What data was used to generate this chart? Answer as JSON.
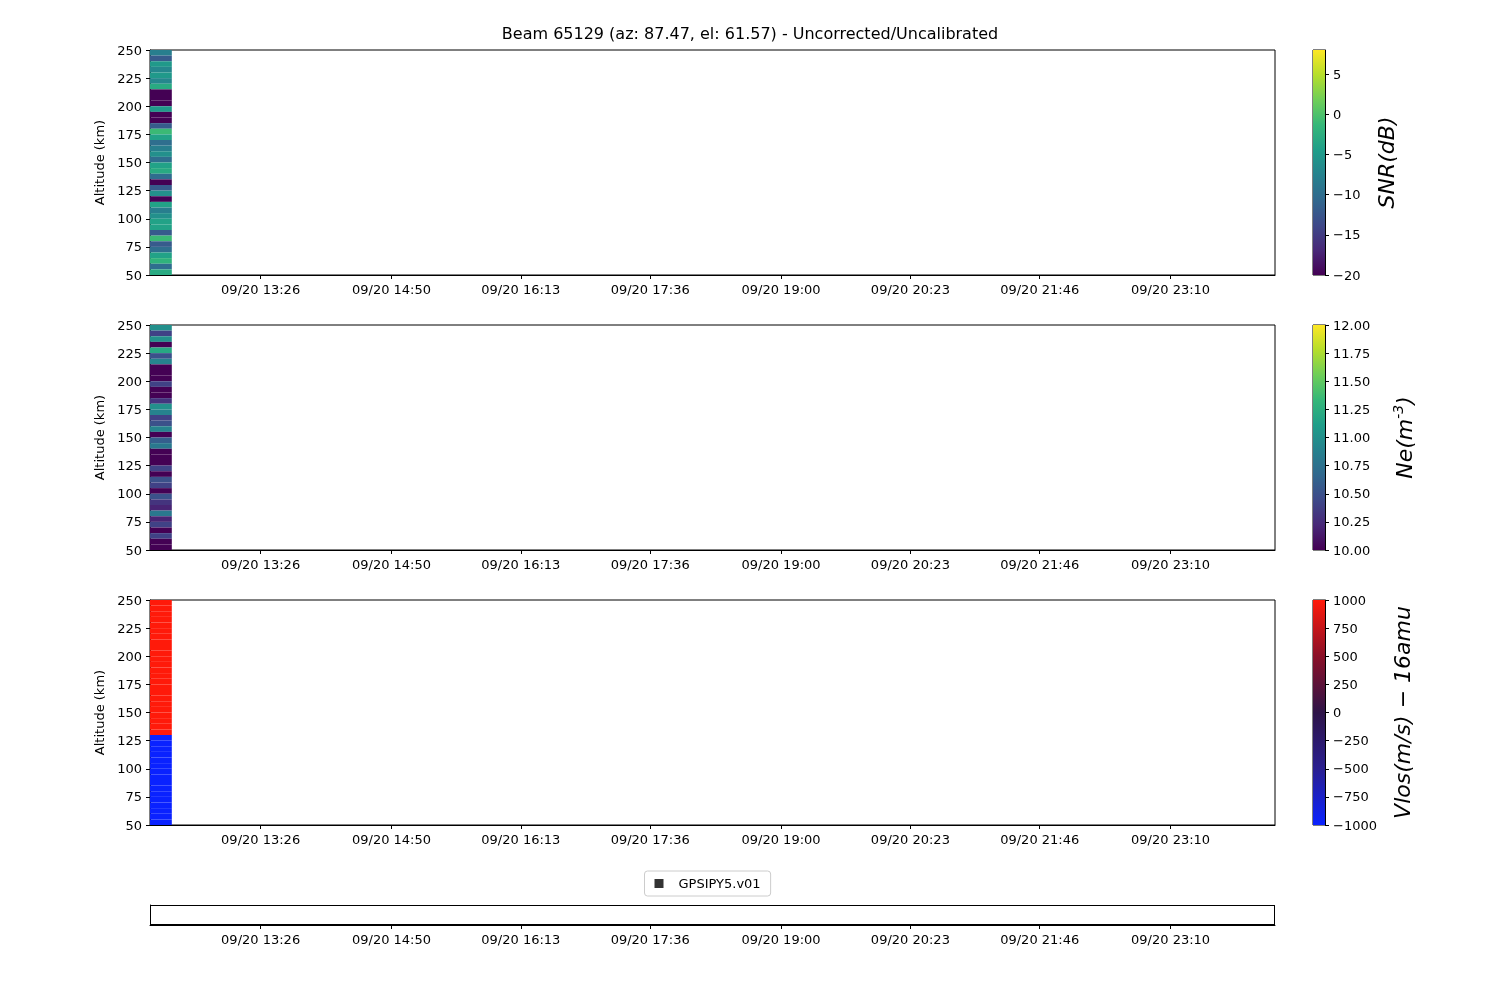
{
  "chart_data": [
    {
      "type": "heatmap",
      "title": "Beam 65129 (az: 87.47, el: 61.57) - Uncorrected/Uncalibrated",
      "ylabel": "Altitude (km)",
      "clabel": "SNR(dB)",
      "x": [
        "--09-20T12:22",
        "--09-20T12:36"
      ],
      "xlim": [
        "--09-20T12:15",
        "--09-21T00:17"
      ],
      "xticks": [
        {
          "value": "--09-20T13:26",
          "label": "09/20 13:26"
        },
        {
          "value": "--09-20T14:50",
          "label": "09/20 14:50"
        },
        {
          "value": "--09-20T16:13",
          "label": "09/20 16:13"
        },
        {
          "value": "--09-20T17:36",
          "label": "09/20 17:36"
        },
        {
          "value": "--09-20T19:00",
          "label": "09/20 19:00"
        },
        {
          "value": "--09-20T20:23",
          "label": "09/20 20:23"
        },
        {
          "value": "--09-20T21:46",
          "label": "09/20 21:46"
        },
        {
          "value": "--09-20T23:10",
          "label": "09/20 23:10"
        }
      ],
      "ylim": [
        50,
        250
      ],
      "yticks": [
        50,
        75,
        100,
        125,
        150,
        175,
        200,
        225,
        250
      ],
      "clim": [
        -20,
        8
      ],
      "cticks": [
        {
          "value": -20,
          "label": "−20"
        },
        {
          "value": -15,
          "label": "−15"
        },
        {
          "value": -10,
          "label": "−10"
        },
        {
          "value": -5,
          "label": "−5"
        },
        0,
        5
      ],
      "cells": [
        [
          -8,
          null
        ],
        [
          -12,
          null
        ],
        [
          -5,
          null
        ],
        [
          -7,
          null
        ],
        [
          -5,
          null
        ],
        [
          -7,
          null
        ],
        [
          -3,
          null
        ],
        [
          -20,
          null
        ],
        [
          -20,
          null
        ],
        [
          -20,
          null
        ],
        [
          -5,
          null
        ],
        [
          -20,
          null
        ],
        [
          -20,
          null
        ],
        [
          -12,
          null
        ],
        [
          -1,
          null
        ],
        [
          -4,
          null
        ],
        [
          -10,
          null
        ],
        [
          -8,
          null
        ],
        [
          -6,
          null
        ],
        [
          -10,
          null
        ],
        [
          -4,
          null
        ],
        [
          -3,
          null
        ],
        [
          -10,
          null
        ],
        [
          -20,
          null
        ],
        [
          -12,
          null
        ],
        [
          -6,
          null
        ],
        [
          -20,
          null
        ],
        [
          -4,
          null
        ],
        [
          -8,
          null
        ],
        [
          -6,
          null
        ],
        [
          -4,
          null
        ],
        [
          -4,
          null
        ],
        [
          -12,
          null
        ],
        [
          -1,
          null
        ],
        [
          -12,
          null
        ],
        [
          -10,
          null
        ],
        [
          -4,
          null
        ],
        [
          -2,
          null
        ],
        [
          -10,
          null
        ],
        [
          -3,
          null
        ]
      ]
    },
    {
      "type": "heatmap",
      "ylabel": "Altitude (km)",
      "clabel": "Ne(m$^{-3}$)",
      "x": [
        "--09-20T12:22",
        "--09-20T12:36"
      ],
      "xlim": [
        "--09-20T12:15",
        "--09-21T00:17"
      ],
      "xticks": [
        {
          "value": "--09-20T13:26",
          "label": "09/20 13:26"
        },
        {
          "value": "--09-20T14:50",
          "label": "09/20 14:50"
        },
        {
          "value": "--09-20T16:13",
          "label": "09/20 16:13"
        },
        {
          "value": "--09-20T17:36",
          "label": "09/20 17:36"
        },
        {
          "value": "--09-20T19:00",
          "label": "09/20 19:00"
        },
        {
          "value": "--09-20T20:23",
          "label": "09/20 20:23"
        },
        {
          "value": "--09-20T21:46",
          "label": "09/20 21:46"
        },
        {
          "value": "--09-20T23:10",
          "label": "09/20 23:10"
        }
      ],
      "ylim": [
        50,
        250
      ],
      "yticks": [
        50,
        75,
        100,
        125,
        150,
        175,
        200,
        225,
        250
      ],
      "clim": [
        10,
        12
      ],
      "cticks": [
        {
          "value": 10,
          "label": "10.00"
        },
        {
          "value": 10.25,
          "label": "10.25"
        },
        {
          "value": 10.5,
          "label": "10.50"
        },
        {
          "value": 10.75,
          "label": "10.75"
        },
        {
          "value": 11,
          "label": "11.00"
        },
        {
          "value": 11.25,
          "label": "11.25"
        },
        {
          "value": 11.5,
          "label": "11.50"
        },
        {
          "value": 11.75,
          "label": "11.75"
        },
        {
          "value": 12,
          "label": "12.00"
        }
      ],
      "cells": [
        [
          11.0,
          null
        ],
        [
          10.4,
          null
        ],
        [
          11.0,
          null
        ],
        [
          10.0,
          null
        ],
        [
          11.2,
          null
        ],
        [
          10.5,
          null
        ],
        [
          10.9,
          null
        ],
        [
          10.0,
          null
        ],
        [
          10.0,
          null
        ],
        [
          10.0,
          null
        ],
        [
          10.4,
          null
        ],
        [
          10.0,
          null
        ],
        [
          10.0,
          null
        ],
        [
          10.3,
          null
        ],
        [
          11.0,
          null
        ],
        [
          10.9,
          null
        ],
        [
          10.4,
          null
        ],
        [
          10.5,
          null
        ],
        [
          10.9,
          null
        ],
        [
          10.0,
          null
        ],
        [
          10.6,
          null
        ],
        [
          10.8,
          null
        ],
        [
          10.0,
          null
        ],
        [
          10.0,
          null
        ],
        [
          10.0,
          null
        ],
        [
          10.4,
          null
        ],
        [
          10.0,
          null
        ],
        [
          10.5,
          null
        ],
        [
          10.4,
          null
        ],
        [
          10.0,
          null
        ],
        [
          10.5,
          null
        ],
        [
          10.3,
          null
        ],
        [
          10.2,
          null
        ],
        [
          10.8,
          null
        ],
        [
          10.2,
          null
        ],
        [
          10.4,
          null
        ],
        [
          10.0,
          null
        ],
        [
          10.4,
          null
        ],
        [
          10.0,
          null
        ],
        [
          10.0,
          null
        ]
      ]
    },
    {
      "type": "heatmap",
      "ylabel": "Altitude (km)",
      "clabel": "Vlos(m/s) − 16amu",
      "x": [
        "--09-20T12:22",
        "--09-20T12:36"
      ],
      "xlim": [
        "--09-20T12:15",
        "--09-21T00:17"
      ],
      "xticks": [
        {
          "value": "--09-20T13:26",
          "label": "09/20 13:26"
        },
        {
          "value": "--09-20T14:50",
          "label": "09/20 14:50"
        },
        {
          "value": "--09-20T16:13",
          "label": "09/20 16:13"
        },
        {
          "value": "--09-20T17:36",
          "label": "09/20 17:36"
        },
        {
          "value": "--09-20T19:00",
          "label": "09/20 19:00"
        },
        {
          "value": "--09-20T20:23",
          "label": "09/20 20:23"
        },
        {
          "value": "--09-20T21:46",
          "label": "09/20 21:46"
        },
        {
          "value": "--09-20T23:10",
          "label": "09/20 23:10"
        }
      ],
      "ylim": [
        50,
        250
      ],
      "yticks": [
        50,
        75,
        100,
        125,
        150,
        175,
        200,
        225,
        250
      ],
      "clim": [
        -1000,
        1000
      ],
      "cticks": [
        {
          "value": -1000,
          "label": "−1000"
        },
        {
          "value": -750,
          "label": "−750"
        },
        {
          "value": -500,
          "label": "−500"
        },
        {
          "value": -250,
          "label": "−250"
        },
        0,
        250,
        500,
        750,
        1000
      ],
      "cells": [
        [
          1000,
          null
        ],
        [
          1000,
          null
        ],
        [
          1000,
          null
        ],
        [
          1000,
          null
        ],
        [
          1000,
          null
        ],
        [
          1000,
          null
        ],
        [
          1000,
          null
        ],
        [
          1000,
          null
        ],
        [
          1000,
          null
        ],
        [
          1000,
          null
        ],
        [
          1000,
          null
        ],
        [
          1000,
          null
        ],
        [
          1000,
          null
        ],
        [
          1000,
          null
        ],
        [
          1000,
          null
        ],
        [
          1000,
          null
        ],
        [
          1000,
          null
        ],
        [
          1000,
          null
        ],
        [
          1000,
          null
        ],
        [
          1000,
          null
        ],
        [
          1000,
          null
        ],
        [
          1000,
          null
        ],
        [
          1000,
          null
        ],
        [
          1000,
          null
        ],
        [
          -1000,
          null
        ],
        [
          -1000,
          null
        ],
        [
          -1000,
          null
        ],
        [
          -1000,
          null
        ],
        [
          -1000,
          null
        ],
        [
          -1000,
          null
        ],
        [
          -1000,
          null
        ],
        [
          -1000,
          null
        ],
        [
          -1000,
          null
        ],
        [
          -1000,
          null
        ],
        [
          -1000,
          null
        ],
        [
          -1000,
          null
        ],
        [
          -1000,
          null
        ],
        [
          -1000,
          null
        ],
        [
          -1000,
          null
        ],
        [
          -1000,
          null
        ]
      ]
    },
    {
      "type": "other",
      "legend": "top",
      "series": [
        {
          "name": "GPSIPY5.v01",
          "color": "#000000"
        }
      ]
    }
  ]
}
